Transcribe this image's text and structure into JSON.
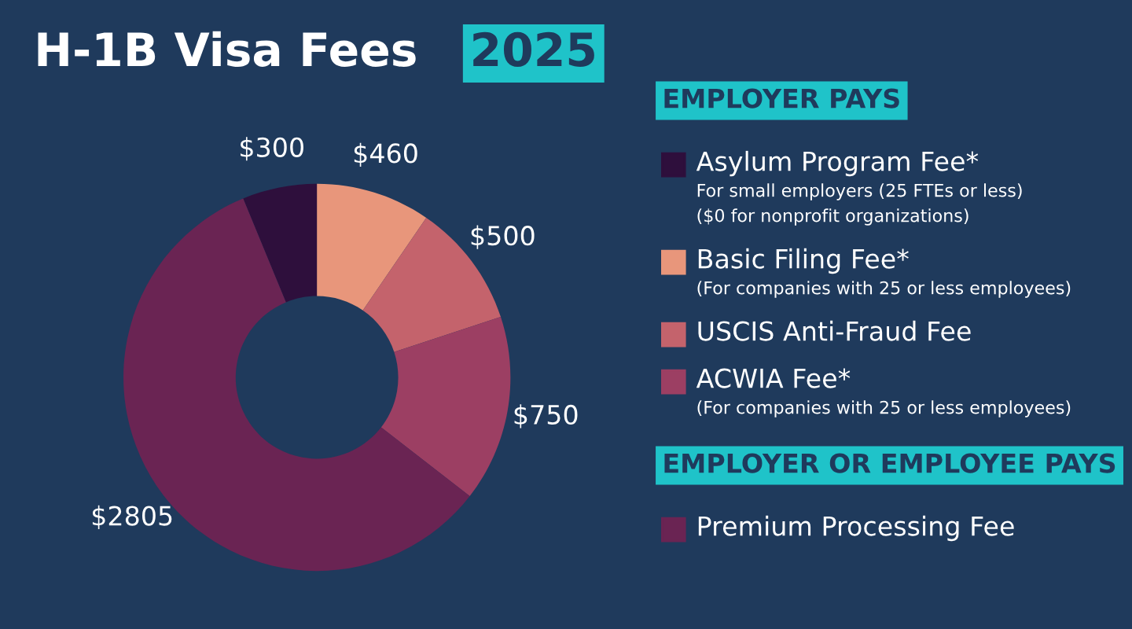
{
  "chart_data": {
    "type": "donut",
    "title": "H-1B Visa Fees",
    "subtitle": "2025",
    "categories": [
      "Asylum Program Fee*\nFor small employers (25 FTEs or less)\n($0 for nonprofit organizations)",
      "Basic Filing Fee*\n(For companies with 25 or less employees)",
      "USCIS Anti-Fraud Fee",
      "ACWIA Fee*\n(For companies with 25 or less employees)",
      "Premium Processing Fee"
    ],
    "values": [
      300,
      460,
      500,
      750,
      2805
    ],
    "value_labels": [
      "$300",
      "$460",
      "$500",
      "$750",
      "$2805"
    ],
    "colors": [
      "#2e0f3c",
      "#e8967b",
      "#c4636c",
      "#9c3f63",
      "#6a2453"
    ],
    "annotations": [
      "EMPLOYER PAYS",
      "EMPLOYER OR EMPLOYEE PAYS"
    ],
    "legend": "right"
  }
}
